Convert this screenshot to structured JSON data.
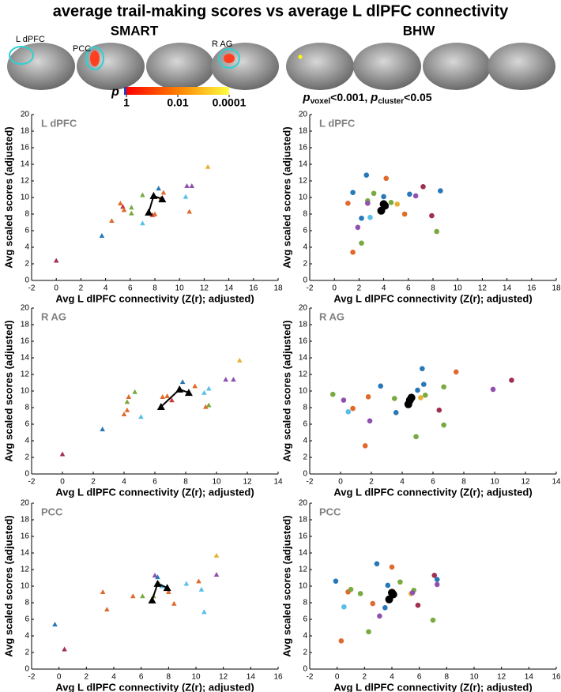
{
  "header": {
    "title": "average trail-making scores vs average L dlPFC connectivity",
    "groups": [
      "SMART",
      "BHW"
    ],
    "regions": [
      "L dPFC",
      "PCC",
      "R AG"
    ],
    "colorbar": {
      "label": "p",
      "ticks": [
        1,
        0.01,
        0.0001
      ],
      "lim": [
        1,
        0.0001
      ],
      "scale": "log",
      "colors": [
        "#ff0000",
        "#ff8000",
        "#ffff40"
      ]
    },
    "threshold": [
      "p",
      "voxel",
      "<0.001, ",
      "p",
      "cluster",
      "<0.05"
    ]
  },
  "chart_data": [
    {
      "type": "scatter",
      "title": "L dPFC",
      "x_label": "Avg L dlPFC connectivity (Z(r); adjusted)",
      "y_label": "Avg scaled scores (adjusted)",
      "marker": "triangle",
      "x": [
        0,
        3.7,
        4.5,
        5.2,
        5.4,
        5.5,
        6.1,
        6.1,
        7,
        7,
        7.8,
        8,
        8.3,
        8.5,
        8.7,
        10.5,
        10.6,
        11,
        10.8,
        12.3
      ],
      "values": [
        2.4,
        5.4,
        7.2,
        9.3,
        8.9,
        8.5,
        8.8,
        8.1,
        10.3,
        6.9,
        7.9,
        8,
        11.1,
        9.9,
        10.6,
        10.1,
        11.4,
        11.4,
        8.3,
        13.7
      ],
      "point_colors": [
        "#a03050",
        "#2878b8",
        "#e06a2c",
        "#e06a2c",
        "#c83838",
        "#e06a2c",
        "#78aa40",
        "#78aa40",
        "#78aa40",
        "#58c0e8",
        "#c83838",
        "#e06a2c",
        "#2878b8",
        "#e06a2c",
        "#e06a2c",
        "#58c0e8",
        "#9050b0",
        "#9050b0",
        "#e06a2c",
        "#e8b030"
      ],
      "trend": {
        "x": [
          7.5,
          7.9,
          8.6
        ],
        "values": [
          8.2,
          10.2,
          9.8
        ],
        "color": "#000000"
      },
      "xlim": [
        -2,
        18
      ],
      "ylim": [
        0,
        20
      ],
      "xticks": [
        -2,
        0,
        2,
        4,
        6,
        8,
        10,
        12,
        14,
        16,
        18
      ],
      "yticks": [
        0,
        2,
        4,
        6,
        8,
        10,
        12,
        14,
        16,
        18,
        20
      ]
    },
    {
      "type": "scatter",
      "title": "L dPFC",
      "x_label": "Avg L dlPFC connectivity (Z(r); adjusted)",
      "y_label": "Avg scaled scores (adjusted)",
      "marker": "circle",
      "x": [
        1.5,
        1.1,
        1.5,
        1.9,
        2.2,
        2.2,
        2.6,
        2.7,
        2.7,
        2.9,
        3.2,
        4,
        4.2,
        4.6,
        5.1,
        5.7,
        6.1,
        6.6,
        7.2,
        7.9,
        8.3,
        8.6
      ],
      "values": [
        10.6,
        9.3,
        3.4,
        6.4,
        7.5,
        4.5,
        12.7,
        9.6,
        9.3,
        7.6,
        10.5,
        10.1,
        12.3,
        9.4,
        9.2,
        8,
        10.4,
        10.2,
        11.3,
        7.8,
        5.9,
        10.8
      ],
      "point_colors": [
        "#2878b8",
        "#e06a2c",
        "#e06a2c",
        "#9050b0",
        "#2878b8",
        "#78aa40",
        "#2878b8",
        "#78aa40",
        "#9050b0",
        "#58c0e8",
        "#78aa40",
        "#2878b8",
        "#e06a2c",
        "#78aa40",
        "#e8b030",
        "#e06a2c",
        "#2878b8",
        "#9050b0",
        "#a03050",
        "#a03050",
        "#78aa40",
        "#2878b8"
      ],
      "trend": {
        "x": [
          3.8,
          4.0,
          4.1
        ],
        "values": [
          8.4,
          9.2,
          9.0
        ],
        "color": "#000000"
      },
      "xlim": [
        -2,
        18
      ],
      "ylim": [
        0,
        20
      ],
      "xticks": [
        -2,
        0,
        2,
        4,
        6,
        8,
        10,
        12,
        14,
        16,
        18
      ],
      "yticks": [
        0,
        2,
        4,
        6,
        8,
        10,
        12,
        14,
        16,
        18,
        20
      ]
    },
    {
      "type": "scatter",
      "title": "R AG",
      "x_label": "Avg L dlPFC connectivity (Z(r); adjusted)",
      "y_label": "Avg scaled scores (adjusted)",
      "marker": "triangle",
      "x": [
        0,
        2.6,
        4,
        4.2,
        4.2,
        4.3,
        4.7,
        5.1,
        6.5,
        6.8,
        7.1,
        7.8,
        8.6,
        9.2,
        9.5,
        9.3,
        9.5,
        10.6,
        11.1,
        11.5
      ],
      "values": [
        2.4,
        5.4,
        7.2,
        7.7,
        8.7,
        9.3,
        9.9,
        6.9,
        9.3,
        9.4,
        8.9,
        11.1,
        10.6,
        9.8,
        10.3,
        8.1,
        8.3,
        11.4,
        11.4,
        13.7
      ],
      "point_colors": [
        "#a03050",
        "#2878b8",
        "#e06a2c",
        "#e06a2c",
        "#78aa40",
        "#e06a2c",
        "#78aa40",
        "#58c0e8",
        "#e06a2c",
        "#e06a2c",
        "#c83838",
        "#2878b8",
        "#e06a2c",
        "#58c0e8",
        "#58c0e8",
        "#e06a2c",
        "#78aa40",
        "#9050b0",
        "#9050b0",
        "#e8b030"
      ],
      "trend": {
        "x": [
          6.4,
          7.6,
          8.2
        ],
        "values": [
          8.1,
          10.2,
          9.8
        ],
        "color": "#000000"
      },
      "xlim": [
        -2,
        14
      ],
      "ylim": [
        0,
        20
      ],
      "xticks": [
        -2,
        0,
        2,
        4,
        6,
        8,
        10,
        12,
        14
      ],
      "yticks": [
        0,
        2,
        4,
        6,
        8,
        10,
        12,
        14,
        16,
        18,
        20
      ]
    },
    {
      "type": "scatter",
      "title": "R AG",
      "x_label": "Avg L dlPFC connectivity (Z(r); adjusted)",
      "y_label": "Avg scaled scores (adjusted)",
      "marker": "circle",
      "x": [
        -0.5,
        0.2,
        0.5,
        0.8,
        1.6,
        1.8,
        1.9,
        2.6,
        3.5,
        3.6,
        4.9,
        5,
        5.2,
        5.3,
        5.5,
        5.4,
        6.4,
        6.7,
        6.7,
        7.5,
        9.9,
        11.1
      ],
      "values": [
        9.6,
        8.9,
        7.5,
        7.9,
        3.4,
        9.3,
        6.4,
        10.6,
        9.1,
        7.4,
        4.5,
        10.1,
        9.2,
        12.7,
        9.5,
        10.8,
        7.7,
        10.5,
        5.9,
        12.3,
        10.2,
        11.3
      ],
      "point_colors": [
        "#78aa40",
        "#9050b0",
        "#58c0e8",
        "#e06a2c",
        "#e06a2c",
        "#e06a2c",
        "#9050b0",
        "#2878b8",
        "#78aa40",
        "#2878b8",
        "#78aa40",
        "#2878b8",
        "#e8b030",
        "#2878b8",
        "#78aa40",
        "#2878b8",
        "#a03050",
        "#78aa40",
        "#78aa40",
        "#e06a2c",
        "#9050b0",
        "#a03050"
      ],
      "trend": {
        "x": [
          4.4,
          4.6,
          4.5
        ],
        "values": [
          8.4,
          9.2,
          8.9
        ],
        "color": "#000000"
      },
      "xlim": [
        -2,
        14
      ],
      "ylim": [
        0,
        20
      ],
      "xticks": [
        -2,
        0,
        2,
        4,
        6,
        8,
        10,
        12,
        14
      ],
      "yticks": [
        0,
        2,
        4,
        6,
        8,
        10,
        12,
        14,
        16,
        18,
        20
      ]
    },
    {
      "type": "scatter",
      "title": "PCC",
      "x_label": "Avg L dlPFC connectivity (Z(r); adjusted)",
      "y_label": "Avg scaled scores (adjusted)",
      "marker": "triangle",
      "x": [
        -0.3,
        0.4,
        3.2,
        3.5,
        5.4,
        6.1,
        6.9,
        7,
        7.2,
        7.3,
        7.5,
        8,
        8.4,
        9.3,
        10.2,
        10.4,
        10.6,
        11.5,
        11.5
      ],
      "values": [
        5.4,
        2.4,
        9.3,
        7.2,
        8.8,
        8.8,
        8.8,
        11.3,
        11.1,
        10.3,
        10,
        9.3,
        7.9,
        10.3,
        10.6,
        9.6,
        6.9,
        11.4,
        13.7
      ],
      "point_colors": [
        "#2878b8",
        "#a03050",
        "#e06a2c",
        "#e06a2c",
        "#e06a2c",
        "#78aa40",
        "#78aa40",
        "#9050b0",
        "#2878b8",
        "#78aa40",
        "#58c0e8",
        "#e06a2c",
        "#e06a2c",
        "#58c0e8",
        "#e06a2c",
        "#58c0e8",
        "#58c0e8",
        "#9050b0",
        "#e8b030"
      ],
      "trend": {
        "x": [
          6.8,
          7.2,
          7.9
        ],
        "values": [
          8.3,
          10.3,
          9.8
        ],
        "color": "#000000"
      },
      "xlim": [
        -2,
        16
      ],
      "ylim": [
        0,
        20
      ],
      "xticks": [
        -2,
        0,
        2,
        4,
        6,
        8,
        10,
        12,
        14,
        16
      ],
      "yticks": [
        0,
        2,
        4,
        6,
        8,
        10,
        12,
        14,
        16,
        18,
        20
      ]
    },
    {
      "type": "scatter",
      "title": "PCC",
      "x_label": "Avg L dlPFC connectivity (Z(r); adjusted)",
      "y_label": "Avg scaled scores (adjusted)",
      "marker": "circle",
      "x": [
        -0.1,
        0.3,
        0.5,
        0.8,
        1,
        1.7,
        2.3,
        2.6,
        2.9,
        3.1,
        3.5,
        3.7,
        4,
        4.1,
        4.6,
        5.4,
        5.6,
        5.5,
        5.9,
        7,
        7.1,
        7.3,
        7.3
      ],
      "values": [
        10.6,
        3.4,
        7.5,
        9.3,
        9.6,
        9.1,
        4.5,
        7.9,
        12.7,
        6.4,
        7.4,
        10.1,
        12.3,
        9.3,
        10.5,
        9.1,
        9.5,
        9.2,
        7.7,
        5.9,
        11.3,
        10.8,
        10.2
      ],
      "point_colors": [
        "#2878b8",
        "#e06a2c",
        "#58c0e8",
        "#e06a2c",
        "#78aa40",
        "#78aa40",
        "#78aa40",
        "#e06a2c",
        "#2878b8",
        "#9050b0",
        "#2878b8",
        "#2878b8",
        "#e06a2c",
        "#e8b030",
        "#78aa40",
        "#e8b030",
        "#78aa40",
        "#9050b0",
        "#a03050",
        "#78aa40",
        "#a03050",
        "#2878b8",
        "#9050b0"
      ],
      "trend": {
        "x": [
          3.8,
          4.0,
          4.1
        ],
        "values": [
          8.4,
          9.2,
          9.0
        ],
        "color": "#000000"
      },
      "xlim": [
        -2,
        16
      ],
      "ylim": [
        0,
        20
      ],
      "xticks": [
        -2,
        0,
        2,
        4,
        6,
        8,
        10,
        12,
        14,
        16
      ],
      "yticks": [
        0,
        2,
        4,
        6,
        8,
        10,
        12,
        14,
        16,
        18,
        20
      ]
    }
  ]
}
